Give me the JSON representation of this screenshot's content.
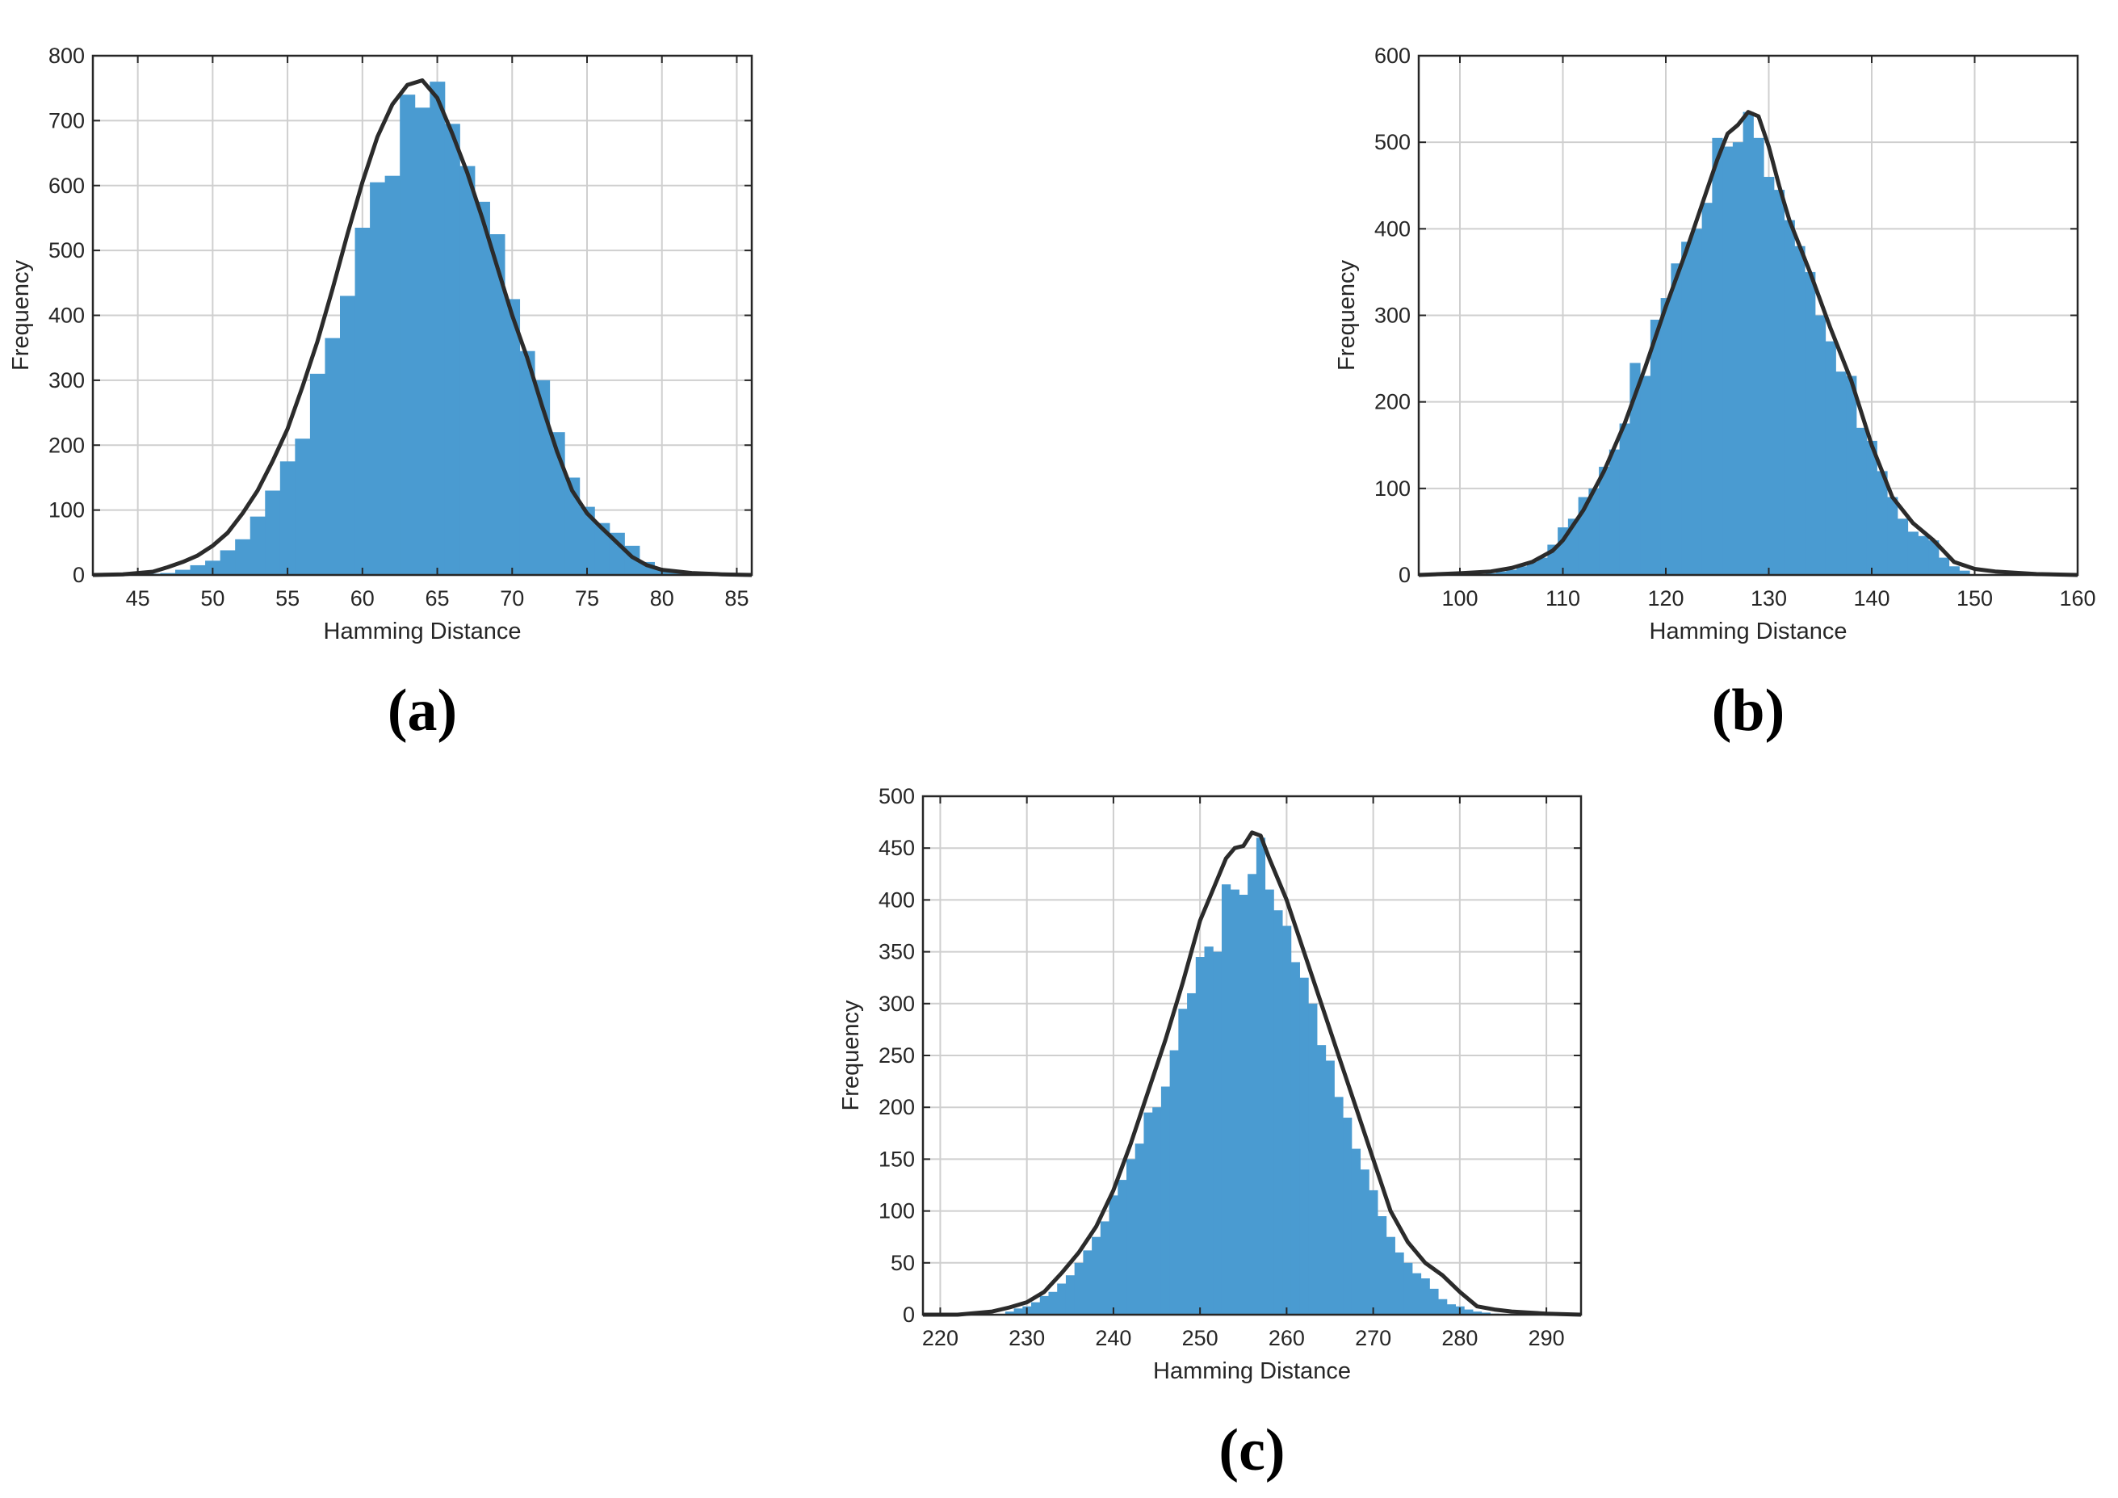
{
  "colors": {
    "bar": "#4a9bd1",
    "curve": "#2b2b2b",
    "grid": "#cfcfcf",
    "axis": "#262626"
  },
  "chart_data": [
    {
      "panel_label": "(a)",
      "type": "bar",
      "xlabel": "Hamming Distance",
      "ylabel": "Frequency",
      "xlim": [
        42,
        86
      ],
      "ylim": [
        0,
        800
      ],
      "xticks": [
        45,
        50,
        55,
        60,
        65,
        70,
        75,
        80,
        85
      ],
      "yticks": [
        0,
        100,
        200,
        300,
        400,
        500,
        600,
        700,
        800
      ],
      "grid": true,
      "bin_width": 1,
      "bins_x": [
        45,
        46,
        47,
        48,
        49,
        50,
        51,
        52,
        53,
        54,
        55,
        56,
        57,
        58,
        59,
        60,
        61,
        62,
        63,
        64,
        65,
        66,
        67,
        68,
        69,
        70,
        71,
        72,
        73,
        74,
        75,
        76,
        77,
        78,
        79,
        80,
        81,
        82
      ],
      "values": [
        1,
        2,
        3,
        8,
        15,
        22,
        38,
        55,
        90,
        130,
        175,
        210,
        310,
        365,
        430,
        535,
        605,
        615,
        740,
        720,
        760,
        695,
        630,
        575,
        525,
        425,
        345,
        300,
        220,
        150,
        105,
        80,
        65,
        45,
        20,
        10,
        5,
        2
      ],
      "fit_x": [
        42,
        44,
        46,
        47,
        48,
        49,
        50,
        51,
        52,
        53,
        54,
        55,
        56,
        57,
        58,
        59,
        60,
        61,
        62,
        63,
        64,
        65,
        66,
        67,
        68,
        69,
        70,
        71,
        72,
        73,
        74,
        75,
        76,
        77,
        78,
        79,
        80,
        82,
        84,
        86
      ],
      "fit_y": [
        0,
        1,
        5,
        12,
        20,
        30,
        45,
        65,
        95,
        130,
        175,
        225,
        290,
        360,
        440,
        525,
        605,
        675,
        725,
        755,
        762,
        735,
        680,
        620,
        550,
        475,
        400,
        335,
        260,
        190,
        130,
        95,
        72,
        50,
        28,
        15,
        8,
        3,
        1,
        0
      ]
    },
    {
      "panel_label": "(b)",
      "type": "bar",
      "xlabel": "Hamming Distance",
      "ylabel": "Frequency",
      "xlim": [
        96,
        160
      ],
      "ylim": [
        0,
        600
      ],
      "xticks": [
        100,
        110,
        120,
        130,
        140,
        150,
        160
      ],
      "yticks": [
        0,
        100,
        200,
        300,
        400,
        500,
        600
      ],
      "grid": true,
      "bin_width": 1,
      "bins_x": [
        103,
        104,
        105,
        106,
        107,
        108,
        109,
        110,
        111,
        112,
        113,
        114,
        115,
        116,
        117,
        118,
        119,
        120,
        121,
        122,
        123,
        124,
        125,
        126,
        127,
        128,
        129,
        130,
        131,
        132,
        133,
        134,
        135,
        136,
        137,
        138,
        139,
        140,
        141,
        142,
        143,
        144,
        145,
        146,
        147,
        148,
        149
      ],
      "values": [
        2,
        4,
        6,
        10,
        15,
        20,
        35,
        55,
        65,
        90,
        100,
        125,
        145,
        175,
        245,
        230,
        295,
        320,
        360,
        385,
        400,
        430,
        505,
        495,
        500,
        535,
        505,
        460,
        445,
        410,
        380,
        350,
        300,
        270,
        235,
        230,
        170,
        155,
        120,
        90,
        65,
        50,
        45,
        40,
        20,
        10,
        5
      ],
      "fit_x": [
        96,
        100,
        103,
        105,
        107,
        109,
        110,
        112,
        114,
        116,
        118,
        120,
        122,
        124,
        125,
        126,
        127,
        128,
        129,
        130,
        131,
        132,
        134,
        136,
        138,
        140,
        142,
        144,
        146,
        148,
        150,
        152,
        156,
        160
      ],
      "fit_y": [
        0,
        2,
        4,
        8,
        15,
        28,
        40,
        75,
        120,
        175,
        240,
        310,
        375,
        445,
        480,
        510,
        520,
        535,
        530,
        495,
        450,
        410,
        350,
        285,
        225,
        150,
        90,
        60,
        40,
        15,
        7,
        4,
        1,
        0
      ]
    },
    {
      "panel_label": "(c)",
      "type": "bar",
      "xlabel": "Hamming Distance",
      "ylabel": "Frequency",
      "xlim": [
        218,
        294
      ],
      "ylim": [
        0,
        500
      ],
      "xticks": [
        220,
        230,
        240,
        250,
        260,
        270,
        280,
        290
      ],
      "yticks": [
        0,
        50,
        100,
        150,
        200,
        250,
        300,
        350,
        400,
        450,
        500
      ],
      "grid": true,
      "bin_width": 1,
      "bins_x": [
        228,
        229,
        230,
        231,
        232,
        233,
        234,
        235,
        236,
        237,
        238,
        239,
        240,
        241,
        242,
        243,
        244,
        245,
        246,
        247,
        248,
        249,
        250,
        251,
        252,
        253,
        254,
        255,
        256,
        257,
        258,
        259,
        260,
        261,
        262,
        263,
        264,
        265,
        266,
        267,
        268,
        269,
        270,
        271,
        272,
        273,
        274,
        275,
        276,
        277,
        278,
        279,
        280,
        281,
        282,
        283,
        284
      ],
      "values": [
        3,
        6,
        8,
        12,
        18,
        22,
        30,
        38,
        50,
        62,
        75,
        90,
        115,
        130,
        150,
        165,
        195,
        200,
        220,
        255,
        295,
        310,
        345,
        355,
        350,
        415,
        410,
        405,
        425,
        460,
        410,
        390,
        375,
        340,
        325,
        300,
        260,
        245,
        210,
        190,
        160,
        140,
        120,
        95,
        75,
        60,
        50,
        40,
        35,
        25,
        15,
        10,
        8,
        5,
        3,
        2,
        1
      ],
      "fit_x": [
        218,
        222,
        226,
        228,
        230,
        232,
        234,
        236,
        238,
        240,
        242,
        244,
        246,
        248,
        250,
        252,
        253,
        254,
        255,
        256,
        257,
        258,
        260,
        262,
        264,
        266,
        268,
        270,
        272,
        274,
        276,
        278,
        280,
        282,
        284,
        286,
        290,
        294
      ],
      "fit_y": [
        0,
        0,
        3,
        7,
        12,
        22,
        40,
        60,
        85,
        120,
        165,
        215,
        265,
        320,
        380,
        420,
        440,
        450,
        452,
        465,
        462,
        440,
        400,
        350,
        300,
        250,
        200,
        150,
        100,
        70,
        50,
        38,
        22,
        8,
        5,
        3,
        1,
        0
      ]
    }
  ]
}
